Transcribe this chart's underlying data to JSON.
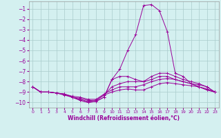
{
  "x": [
    0,
    1,
    2,
    3,
    4,
    5,
    6,
    7,
    8,
    9,
    10,
    11,
    12,
    13,
    14,
    15,
    16,
    17,
    18,
    19,
    20,
    21,
    22,
    23
  ],
  "lines": [
    [
      -8.5,
      -9.0,
      -9.0,
      -9.1,
      -9.2,
      -9.5,
      -9.8,
      -10.0,
      -9.9,
      -9.5,
      -7.8,
      -6.8,
      -5.0,
      -3.5,
      -0.7,
      -0.6,
      -1.2,
      -3.2,
      -7.2,
      -7.5,
      -8.2,
      -8.3,
      -8.5,
      -9.0
    ],
    [
      -8.5,
      -9.0,
      -9.0,
      -9.1,
      -9.2,
      -9.5,
      -9.8,
      -10.0,
      -9.9,
      -9.5,
      -7.8,
      -7.5,
      -7.5,
      -7.8,
      -8.0,
      -7.5,
      -7.2,
      -7.2,
      -7.5,
      -7.8,
      -8.0,
      -8.2,
      -8.5,
      -9.0
    ],
    [
      -8.5,
      -9.0,
      -9.0,
      -9.1,
      -9.2,
      -9.5,
      -9.7,
      -9.9,
      -9.8,
      -9.3,
      -8.5,
      -8.2,
      -8.0,
      -8.0,
      -8.0,
      -7.8,
      -7.5,
      -7.5,
      -7.8,
      -8.0,
      -8.2,
      -8.5,
      -8.8,
      -9.0
    ],
    [
      -8.5,
      -9.0,
      -9.0,
      -9.1,
      -9.2,
      -9.4,
      -9.5,
      -9.7,
      -9.7,
      -9.2,
      -8.8,
      -8.5,
      -8.5,
      -8.5,
      -8.3,
      -8.0,
      -7.8,
      -7.7,
      -7.8,
      -8.0,
      -8.2,
      -8.5,
      -8.8,
      -9.0
    ],
    [
      -8.5,
      -9.0,
      -9.0,
      -9.1,
      -9.3,
      -9.5,
      -9.6,
      -9.8,
      -9.8,
      -9.3,
      -9.0,
      -8.8,
      -8.7,
      -8.8,
      -8.8,
      -8.5,
      -8.2,
      -8.1,
      -8.2,
      -8.3,
      -8.4,
      -8.5,
      -8.7,
      -9.0
    ]
  ],
  "color": "#990099",
  "bg_color": "#d4f0f0",
  "grid_color": "#aacccc",
  "xlabel": "Windchill (Refroidissement éolien,°C)",
  "ylim": [
    -10.5,
    -0.3
  ],
  "xlim": [
    -0.5,
    23.5
  ],
  "yticks": [
    -10,
    -9,
    -8,
    -7,
    -6,
    -5,
    -4,
    -3,
    -2,
    -1
  ],
  "xticks": [
    0,
    1,
    2,
    3,
    4,
    5,
    6,
    7,
    8,
    9,
    10,
    11,
    12,
    13,
    14,
    15,
    16,
    17,
    18,
    19,
    20,
    21,
    22,
    23
  ],
  "figsize": [
    3.2,
    2.0
  ],
  "dpi": 100
}
